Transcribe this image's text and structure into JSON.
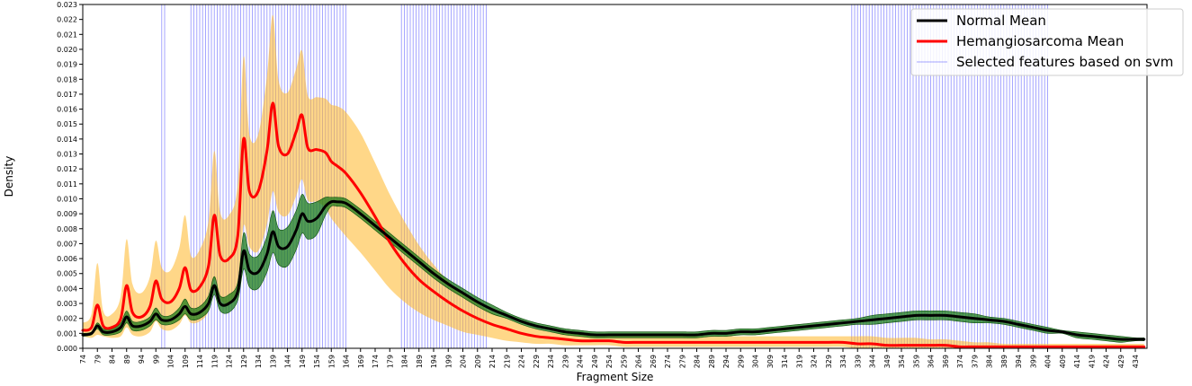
{
  "chart_data": {
    "type": "line",
    "xlabel": "Fragment Size",
    "ylabel": "Density",
    "xlim": [
      74,
      438
    ],
    "ylim": [
      0,
      0.023
    ],
    "x_ticks": [
      74,
      79,
      84,
      89,
      94,
      99,
      104,
      109,
      114,
      119,
      124,
      129,
      134,
      139,
      144,
      149,
      154,
      159,
      164,
      169,
      174,
      179,
      184,
      189,
      194,
      199,
      204,
      209,
      214,
      219,
      224,
      229,
      234,
      239,
      244,
      249,
      254,
      259,
      264,
      269,
      274,
      279,
      284,
      289,
      294,
      299,
      304,
      309,
      314,
      319,
      324,
      329,
      334,
      339,
      344,
      349,
      354,
      359,
      364,
      369,
      374,
      379,
      384,
      389,
      394,
      399,
      404,
      409,
      414,
      419,
      424,
      429,
      434
    ],
    "y_ticks": [
      "0.000",
      "0.001",
      "0.002",
      "0.003",
      "0.004",
      "0.005",
      "0.006",
      "0.007",
      "0.008",
      "0.009",
      "0.010",
      "0.011",
      "0.012",
      "0.013",
      "0.014",
      "0.015",
      "0.016",
      "0.017",
      "0.018",
      "0.019",
      "0.020",
      "0.021",
      "0.022",
      "0.023"
    ],
    "legend": {
      "placement": "top-right",
      "entries": [
        "Normal Mean",
        "Hemangiosarcoma Mean",
        "Selected features based on svm"
      ]
    },
    "series": [
      {
        "name": "Normal Mean",
        "color": "#000000",
        "band_color": "#1a7a1a",
        "x": [
          74,
          77,
          79,
          81,
          84,
          87,
          89,
          91,
          94,
          97,
          99,
          101,
          104,
          107,
          109,
          111,
          114,
          117,
          119,
          121,
          124,
          127,
          129,
          131,
          134,
          137,
          139,
          141,
          144,
          147,
          149,
          151,
          154,
          157,
          159,
          161,
          164,
          169,
          174,
          179,
          184,
          189,
          194,
          199,
          204,
          209,
          214,
          219,
          224,
          229,
          234,
          239,
          244,
          249,
          254,
          259,
          264,
          269,
          274,
          279,
          284,
          289,
          294,
          299,
          304,
          309,
          314,
          319,
          324,
          329,
          334,
          339,
          344,
          349,
          354,
          359,
          364,
          369,
          374,
          379,
          384,
          389,
          394,
          399,
          404,
          409,
          414,
          419,
          424,
          429,
          434,
          437
        ],
        "y": [
          0.0009,
          0.001,
          0.0015,
          0.0011,
          0.0011,
          0.0014,
          0.0021,
          0.0015,
          0.0015,
          0.0018,
          0.0023,
          0.0019,
          0.0019,
          0.0023,
          0.0028,
          0.0023,
          0.0024,
          0.003,
          0.0042,
          0.003,
          0.003,
          0.0038,
          0.0065,
          0.0052,
          0.0051,
          0.0063,
          0.0078,
          0.0068,
          0.0068,
          0.0079,
          0.009,
          0.0085,
          0.0087,
          0.0095,
          0.0098,
          0.0098,
          0.0097,
          0.009,
          0.0082,
          0.0074,
          0.0066,
          0.0058,
          0.005,
          0.0043,
          0.0037,
          0.0031,
          0.0026,
          0.0022,
          0.0018,
          0.0015,
          0.0013,
          0.0011,
          0.001,
          0.0009,
          0.0009,
          0.0009,
          0.0009,
          0.0009,
          0.0009,
          0.0009,
          0.0009,
          0.001,
          0.001,
          0.0011,
          0.0011,
          0.0012,
          0.0013,
          0.0014,
          0.0015,
          0.0016,
          0.0017,
          0.0018,
          0.0019,
          0.002,
          0.0021,
          0.0022,
          0.0022,
          0.0022,
          0.0021,
          0.002,
          0.0019,
          0.0018,
          0.0016,
          0.0014,
          0.0012,
          0.0011,
          0.0009,
          0.0008,
          0.0007,
          0.0006,
          0.0006,
          0.0006
        ],
        "upper": [
          0.001,
          0.0011,
          0.0017,
          0.0013,
          0.0013,
          0.0017,
          0.0025,
          0.0018,
          0.0018,
          0.0021,
          0.0027,
          0.0022,
          0.0022,
          0.0027,
          0.0033,
          0.0027,
          0.0028,
          0.0035,
          0.0048,
          0.0035,
          0.0036,
          0.0044,
          0.0077,
          0.0063,
          0.0062,
          0.0075,
          0.0092,
          0.008,
          0.0081,
          0.0092,
          0.0103,
          0.0097,
          0.0098,
          0.0101,
          0.0101,
          0.0101,
          0.01,
          0.0093,
          0.0085,
          0.0077,
          0.0069,
          0.0061,
          0.0053,
          0.0046,
          0.004,
          0.0034,
          0.0029,
          0.0024,
          0.002,
          0.0017,
          0.0015,
          0.0013,
          0.0012,
          0.0011,
          0.0011,
          0.0011,
          0.0011,
          0.0011,
          0.0011,
          0.0011,
          0.0011,
          0.0012,
          0.0012,
          0.0013,
          0.0013,
          0.0014,
          0.0015,
          0.0016,
          0.0017,
          0.0018,
          0.0019,
          0.002,
          0.0022,
          0.0023,
          0.0024,
          0.0025,
          0.0025,
          0.0025,
          0.0024,
          0.0023,
          0.0021,
          0.002,
          0.0018,
          0.0016,
          0.0014,
          0.0012,
          0.0011,
          0.001,
          0.0009,
          0.0008,
          0.0007,
          0.0007
        ],
        "lower": [
          0.0008,
          0.0009,
          0.0013,
          0.0009,
          0.0009,
          0.0011,
          0.0017,
          0.0012,
          0.0012,
          0.0015,
          0.0019,
          0.0016,
          0.0016,
          0.0019,
          0.0023,
          0.0019,
          0.002,
          0.0025,
          0.0036,
          0.0025,
          0.0024,
          0.0032,
          0.0053,
          0.0041,
          0.004,
          0.0051,
          0.0064,
          0.0056,
          0.0055,
          0.0066,
          0.0077,
          0.0073,
          0.0076,
          0.0089,
          0.0095,
          0.0095,
          0.0094,
          0.0087,
          0.0079,
          0.0071,
          0.0063,
          0.0055,
          0.0047,
          0.004,
          0.0034,
          0.0028,
          0.0023,
          0.002,
          0.0016,
          0.0013,
          0.0011,
          0.0009,
          0.0008,
          0.0007,
          0.0007,
          0.0007,
          0.0007,
          0.0007,
          0.0007,
          0.0007,
          0.0007,
          0.0008,
          0.0008,
          0.0009,
          0.0009,
          0.001,
          0.0011,
          0.0012,
          0.0013,
          0.0014,
          0.0015,
          0.0016,
          0.0016,
          0.0017,
          0.0018,
          0.0019,
          0.0019,
          0.0019,
          0.0018,
          0.0017,
          0.0017,
          0.0016,
          0.0014,
          0.0012,
          0.001,
          0.001,
          0.0007,
          0.0006,
          0.0005,
          0.0004,
          0.0005,
          0.0005
        ]
      },
      {
        "name": "Hemangiosarcoma Mean",
        "color": "#ff0000",
        "band_color": "#ffb726",
        "x": [
          74,
          77,
          79,
          81,
          84,
          87,
          89,
          91,
          94,
          97,
          99,
          101,
          104,
          107,
          109,
          111,
          114,
          117,
          119,
          121,
          124,
          127,
          129,
          131,
          134,
          137,
          139,
          141,
          144,
          147,
          149,
          151,
          154,
          157,
          159,
          161,
          164,
          169,
          174,
          179,
          184,
          189,
          194,
          199,
          204,
          209,
          214,
          219,
          224,
          229,
          234,
          239,
          244,
          249,
          254,
          259,
          264,
          269,
          274,
          279,
          284,
          289,
          294,
          299,
          304,
          309,
          314,
          319,
          324,
          329,
          334,
          339,
          344,
          349,
          354,
          359,
          364,
          369,
          374,
          379,
          384,
          389,
          394,
          399,
          404,
          409,
          414,
          419,
          424,
          429,
          434,
          437
        ],
        "y": [
          0.0012,
          0.0014,
          0.0029,
          0.0015,
          0.0014,
          0.002,
          0.0042,
          0.0024,
          0.0021,
          0.0028,
          0.0045,
          0.0033,
          0.0031,
          0.004,
          0.0054,
          0.0039,
          0.0041,
          0.0055,
          0.0089,
          0.0062,
          0.006,
          0.0075,
          0.014,
          0.0105,
          0.0105,
          0.0132,
          0.0164,
          0.0135,
          0.013,
          0.0145,
          0.0156,
          0.0134,
          0.0133,
          0.0131,
          0.0125,
          0.0122,
          0.0117,
          0.0104,
          0.0088,
          0.0071,
          0.0057,
          0.0046,
          0.0038,
          0.0031,
          0.0025,
          0.002,
          0.0016,
          0.0013,
          0.001,
          0.0008,
          0.0007,
          0.0006,
          0.0005,
          0.0005,
          0.0005,
          0.0004,
          0.0004,
          0.0004,
          0.0004,
          0.0004,
          0.0004,
          0.0004,
          0.0004,
          0.0004,
          0.0004,
          0.0004,
          0.0004,
          0.0004,
          0.0004,
          0.0004,
          0.0004,
          0.0003,
          0.0003,
          0.0002,
          0.0002,
          0.0002,
          0.0002,
          0.0002,
          0.0001,
          0.0001,
          0.0001,
          0.0001,
          0.0001,
          0.0001,
          0.0001,
          0.0001,
          0.0001,
          0.0001,
          0.0001,
          0.0001,
          0.0001,
          0.0001
        ],
        "upper": [
          0.0017,
          0.0023,
          0.0057,
          0.0025,
          0.0023,
          0.0035,
          0.0073,
          0.0043,
          0.0037,
          0.0048,
          0.0072,
          0.0054,
          0.0052,
          0.0067,
          0.0089,
          0.0062,
          0.0066,
          0.0085,
          0.0132,
          0.0091,
          0.0089,
          0.011,
          0.0195,
          0.0143,
          0.0143,
          0.0182,
          0.0223,
          0.0179,
          0.0171,
          0.0187,
          0.0199,
          0.0169,
          0.0168,
          0.0167,
          0.0163,
          0.0162,
          0.0158,
          0.0144,
          0.0124,
          0.0103,
          0.0085,
          0.0069,
          0.0056,
          0.0045,
          0.0037,
          0.003,
          0.0024,
          0.002,
          0.0016,
          0.0013,
          0.0011,
          0.001,
          0.0009,
          0.0008,
          0.0008,
          0.0008,
          0.0008,
          0.0008,
          0.0008,
          0.0008,
          0.0008,
          0.0008,
          0.0008,
          0.0008,
          0.0008,
          0.0008,
          0.0008,
          0.0008,
          0.0008,
          0.0008,
          0.0008,
          0.0008,
          0.0008,
          0.0007,
          0.0007,
          0.0007,
          0.0006,
          0.0006,
          0.0005,
          0.0004,
          0.0004,
          0.0003,
          0.0003,
          0.0003,
          0.0003,
          0.0003,
          0.0003,
          0.0003,
          0.0003,
          0.0003,
          0.0003,
          0.0003
        ],
        "lower": [
          0.0008,
          0.0007,
          0.0009,
          0.0008,
          0.0007,
          0.0008,
          0.0014,
          0.0009,
          0.0008,
          0.0011,
          0.0018,
          0.0013,
          0.0012,
          0.0016,
          0.0022,
          0.0017,
          0.0018,
          0.0025,
          0.0046,
          0.0033,
          0.003,
          0.0042,
          0.0082,
          0.0068,
          0.0065,
          0.0083,
          0.0105,
          0.0091,
          0.0089,
          0.0102,
          0.0113,
          0.0099,
          0.0098,
          0.0094,
          0.0087,
          0.0082,
          0.0075,
          0.0064,
          0.0052,
          0.004,
          0.0031,
          0.0024,
          0.0019,
          0.0015,
          0.0011,
          0.0009,
          0.0007,
          0.0005,
          0.0004,
          0.0003,
          0.0003,
          0.0002,
          0.0002,
          0.0002,
          0.0002,
          0.0001,
          0.0001,
          0.0001,
          0.0001,
          0.0001,
          0.0001,
          0.0001,
          0.0001,
          0.0001,
          0.0001,
          0.0001,
          0.0001,
          0.0001,
          0.0001,
          0.0001,
          0.0001,
          0,
          0,
          0,
          0,
          0,
          0,
          0,
          0,
          0,
          0,
          0,
          0,
          0,
          0,
          0,
          0,
          0,
          0,
          0,
          0,
          0
        ]
      }
    ],
    "selected_features": {
      "name": "Selected features based on svm",
      "color": "#0000ff",
      "positions": [
        {
          "from": 101,
          "to": 102,
          "step": 1
        },
        {
          "from": 111,
          "to": 164,
          "step": 1
        },
        {
          "from": 183,
          "to": 212,
          "step": 1
        },
        {
          "from": 337,
          "to": 404,
          "step": 1
        }
      ]
    }
  }
}
